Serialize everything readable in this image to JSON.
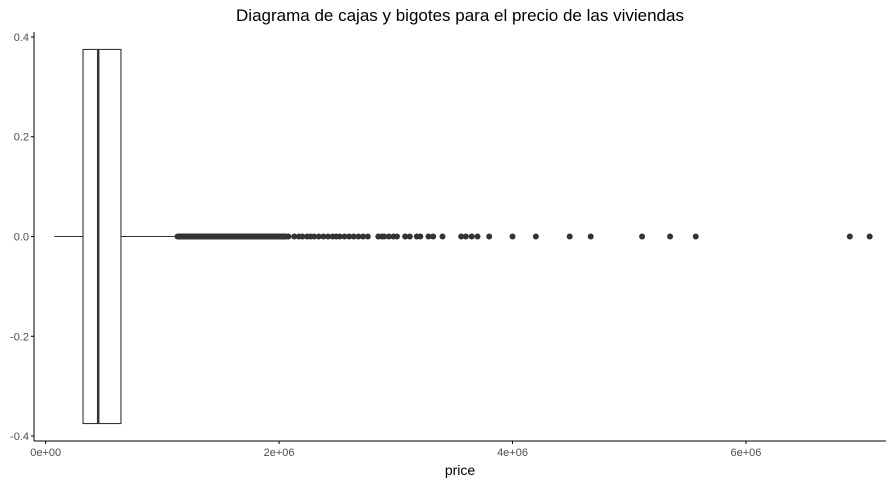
{
  "chart_data": {
    "type": "boxplot",
    "title": "Diagrama de cajas y bigotes para el precio de las viviendas",
    "xlabel": "price",
    "ylabel": "",
    "xlim": [
      -100000,
      7200000
    ],
    "ylim": [
      -0.41,
      0.41
    ],
    "x_ticks": [
      {
        "value": 0,
        "label": "0e+00"
      },
      {
        "value": 2000000,
        "label": "2e+06"
      },
      {
        "value": 4000000,
        "label": "4e+06"
      },
      {
        "value": 6000000,
        "label": "6e+06"
      }
    ],
    "y_ticks": [
      {
        "value": 0.4,
        "label": "0.4"
      },
      {
        "value": 0.2,
        "label": "0.2"
      },
      {
        "value": 0.0,
        "label": "0.0"
      },
      {
        "value": -0.2,
        "label": "-0.2"
      },
      {
        "value": -0.4,
        "label": "-0.4"
      }
    ],
    "box": {
      "y_center": 0,
      "y_half_height": 0.375,
      "whisker_low": 75000,
      "q1": 320000,
      "median": 450000,
      "q3": 645000,
      "whisker_high": 1130000
    },
    "dense_outlier_range": [
      1130000,
      2060000
    ],
    "outliers": [
      2080000,
      2130000,
      2170000,
      2200000,
      2240000,
      2270000,
      2300000,
      2340000,
      2380000,
      2420000,
      2460000,
      2490000,
      2520000,
      2560000,
      2600000,
      2640000,
      2680000,
      2720000,
      2760000,
      2850000,
      2880000,
      2900000,
      2940000,
      2980000,
      3010000,
      3080000,
      3120000,
      3180000,
      3210000,
      3280000,
      3320000,
      3400000,
      3560000,
      3600000,
      3650000,
      3700000,
      3800000,
      4000000,
      4200000,
      4490000,
      4670000,
      5110000,
      5350000,
      5570000,
      6890000,
      7060000
    ],
    "grid": false,
    "colors": {
      "box_outline": "#333333",
      "median": "#333333",
      "whisker": "#333333",
      "outlier_fill": "#333333",
      "axis": "#000000",
      "tick_label": "#4d4d4d"
    }
  }
}
